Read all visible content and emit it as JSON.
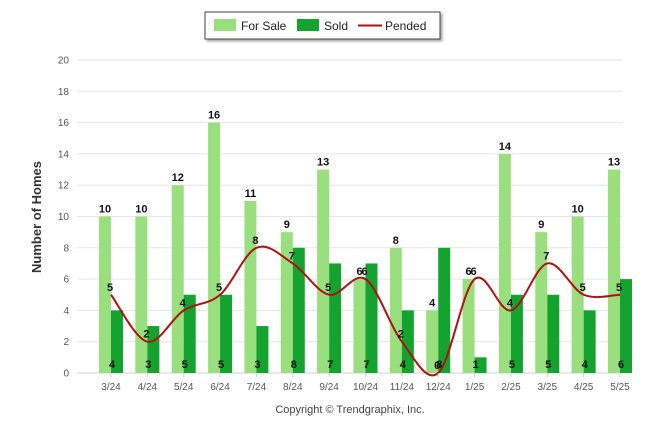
{
  "chart_data": {
    "type": "bar",
    "categories": [
      "3/24",
      "4/24",
      "5/24",
      "6/24",
      "7/24",
      "8/24",
      "9/24",
      "10/24",
      "11/24",
      "12/24",
      "1/25",
      "2/25",
      "3/25",
      "4/25",
      "5/25"
    ],
    "series": [
      {
        "name": "For Sale",
        "type": "bar",
        "color": "#9ADF7E",
        "values": [
          10,
          10,
          12,
          16,
          11,
          9,
          13,
          6,
          8,
          4,
          6,
          14,
          9,
          10,
          13
        ]
      },
      {
        "name": "Sold",
        "type": "bar",
        "color": "#13A32E",
        "values": [
          4,
          3,
          5,
          5,
          3,
          8,
          7,
          7,
          4,
          8,
          1,
          5,
          5,
          4,
          6
        ]
      },
      {
        "name": "Pended",
        "type": "line",
        "color": "#B01010",
        "values": [
          5,
          2,
          4,
          5,
          8,
          7,
          5,
          6,
          2,
          0,
          6,
          4,
          7,
          5,
          5
        ]
      }
    ],
    "ylabel": "Number of Homes",
    "ylim": [
      0,
      20
    ],
    "yticks": [
      0,
      2,
      4,
      6,
      8,
      10,
      12,
      14,
      16,
      18,
      20
    ],
    "grid": true,
    "legend_position": "top-center"
  },
  "footer": {
    "copyright": "Copyright © Trendgraphix, Inc."
  }
}
